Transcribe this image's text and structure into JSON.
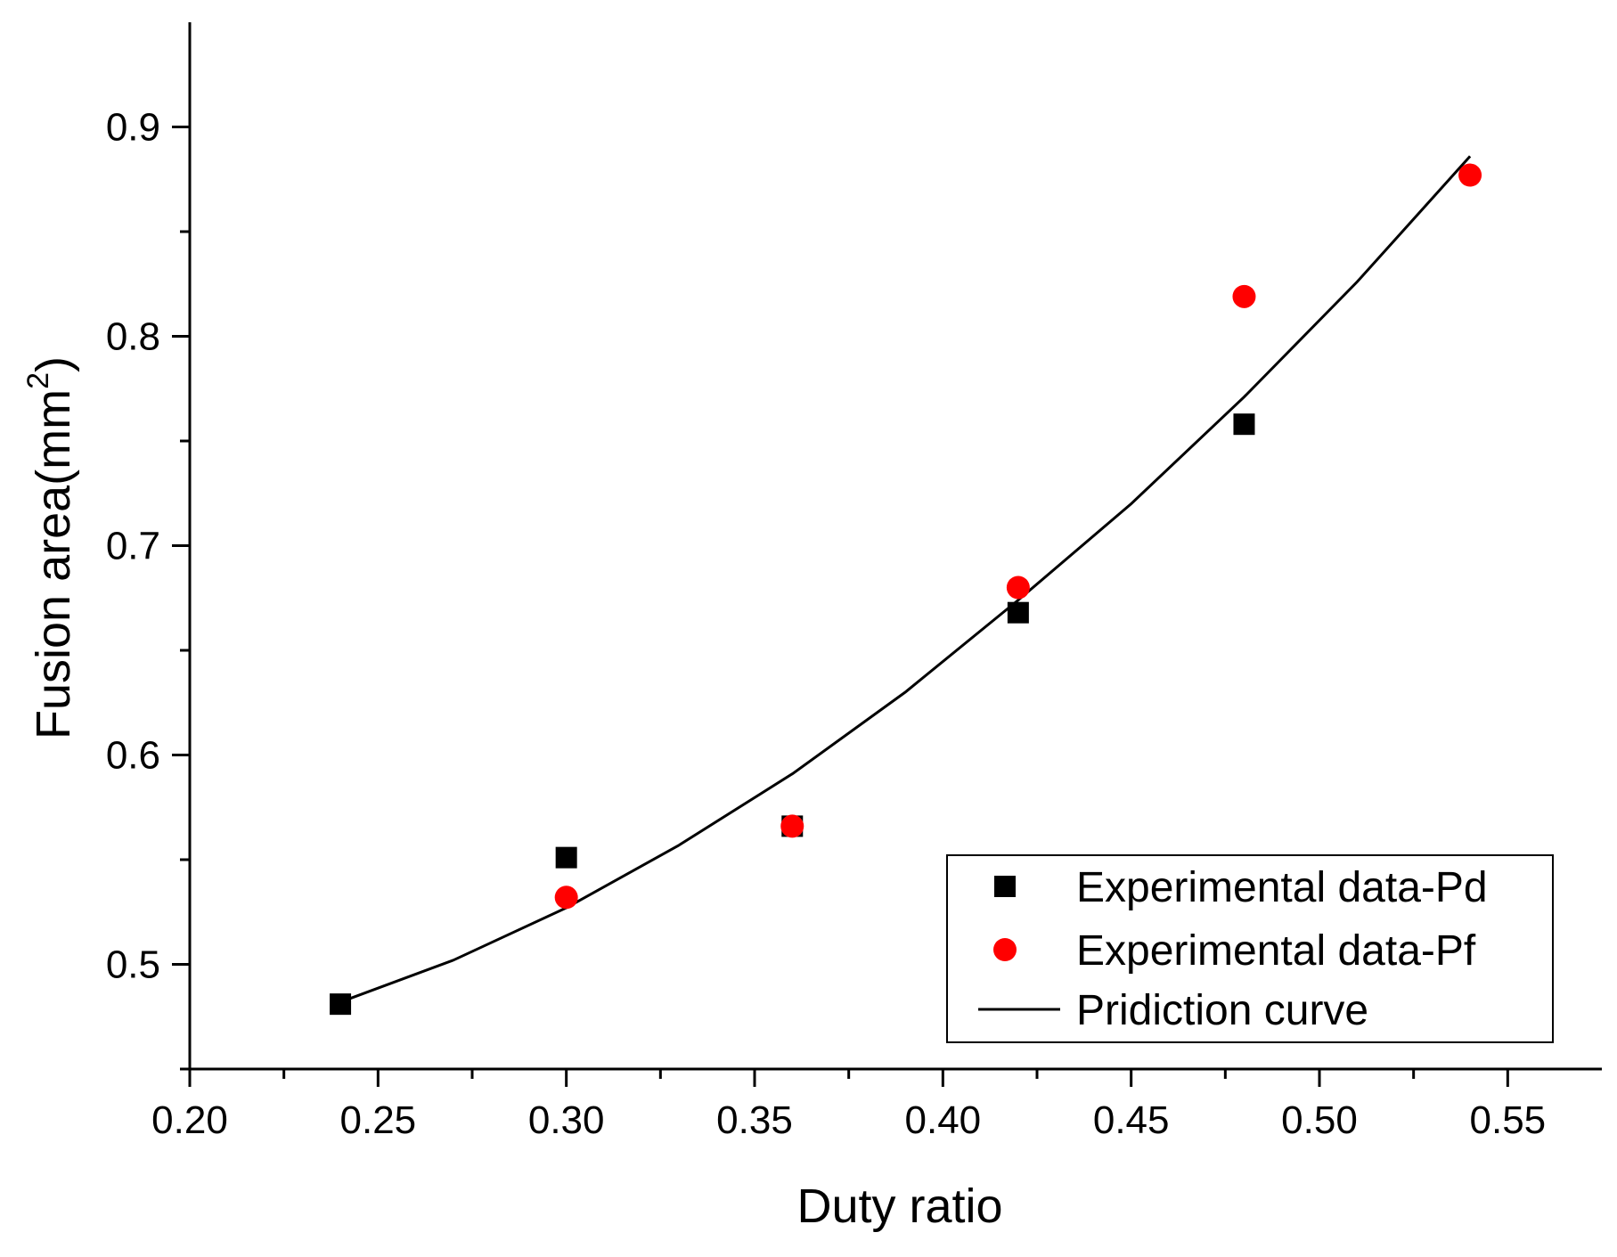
{
  "chart_data": {
    "type": "scatter",
    "title": "",
    "xlabel": "Duty ratio",
    "ylabel_main": "Fusion area(mm",
    "ylabel_sup": "2",
    "ylabel_close": ")",
    "xlim": [
      0.2,
      0.575
    ],
    "ylim": [
      0.45,
      0.95
    ],
    "x_ticks": [
      0.2,
      0.25,
      0.3,
      0.35,
      0.4,
      0.45,
      0.5,
      0.55
    ],
    "x_tick_labels": [
      "0.20",
      "0.25",
      "0.30",
      "0.35",
      "0.40",
      "0.45",
      "0.50",
      "0.55"
    ],
    "x_minor_ticks": [
      0.225,
      0.275,
      0.325,
      0.375,
      0.425,
      0.475,
      0.525
    ],
    "y_ticks": [
      0.5,
      0.6,
      0.7,
      0.8,
      0.9
    ],
    "y_tick_labels": [
      "0.5",
      "0.6",
      "0.7",
      "0.8",
      "0.9"
    ],
    "y_minor_ticks": [
      0.45,
      0.55,
      0.65,
      0.75,
      0.85
    ],
    "grid": false,
    "legend_position": "bottom-right",
    "series": [
      {
        "name": "Experimental data-Pd",
        "marker": "square",
        "color": "#000000",
        "x": [
          0.24,
          0.3,
          0.36,
          0.42,
          0.48
        ],
        "y": [
          0.481,
          0.551,
          0.566,
          0.668,
          0.758
        ]
      },
      {
        "name": "Experimental data-Pf",
        "marker": "circle",
        "color": "#ff0000",
        "x": [
          0.3,
          0.36,
          0.42,
          0.48,
          0.54
        ],
        "y": [
          0.532,
          0.566,
          0.68,
          0.819,
          0.877
        ]
      },
      {
        "name": "Pridiction curve",
        "marker": "line",
        "color": "#000000",
        "x": [
          0.24,
          0.27,
          0.3,
          0.33,
          0.36,
          0.39,
          0.42,
          0.45,
          0.48,
          0.51,
          0.54
        ],
        "y": [
          0.482,
          0.502,
          0.527,
          0.557,
          0.591,
          0.63,
          0.674,
          0.72,
          0.771,
          0.826,
          0.886
        ]
      }
    ]
  }
}
